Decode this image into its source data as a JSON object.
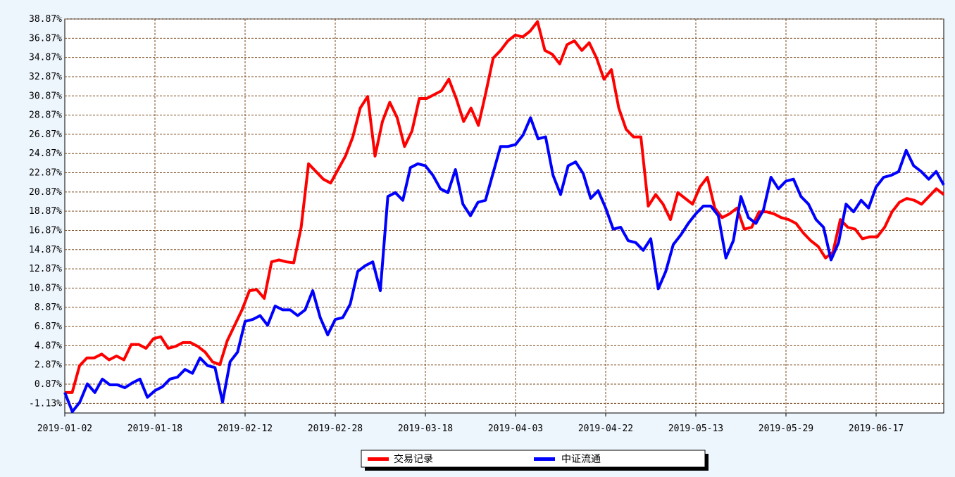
{
  "chart_data": {
    "type": "line",
    "title": "",
    "xlabel": "",
    "ylabel": "",
    "ylim": [
      -2.13,
      38.87
    ],
    "y_ticks": [
      "38.87%",
      "36.87%",
      "34.87%",
      "32.87%",
      "30.87%",
      "28.87%",
      "26.87%",
      "24.87%",
      "22.87%",
      "20.87%",
      "18.87%",
      "16.87%",
      "14.87%",
      "12.87%",
      "10.87%",
      "8.87%",
      "6.87%",
      "4.87%",
      "2.87%",
      "0.87%",
      "-1.13%"
    ],
    "x_ticks": [
      "2019-01-02",
      "2019-01-18",
      "2019-02-12",
      "2019-02-28",
      "2019-03-18",
      "2019-04-03",
      "2019-04-22",
      "2019-05-13",
      "2019-05-29",
      "2019-06-17"
    ],
    "grid": true,
    "legend_position": "bottom-center",
    "series": [
      {
        "name": "交易记录",
        "color": "#ff0000",
        "values": [
          0.0,
          0.0,
          2.8,
          3.6,
          3.6,
          4.0,
          3.4,
          3.8,
          3.4,
          5.0,
          5.0,
          4.6,
          5.6,
          5.8,
          4.6,
          4.8,
          5.2,
          5.2,
          4.8,
          4.2,
          3.2,
          2.9,
          5.4,
          7.0,
          8.6,
          10.6,
          10.7,
          9.8,
          13.6,
          13.8,
          13.6,
          13.5,
          17.2,
          23.8,
          23.0,
          22.2,
          21.8,
          23.2,
          24.6,
          26.6,
          29.6,
          30.8,
          24.6,
          28.2,
          30.2,
          28.6,
          25.6,
          27.2,
          30.6,
          30.6,
          31.0,
          31.4,
          32.6,
          30.6,
          28.2,
          29.6,
          27.8,
          31.2,
          34.8,
          35.6,
          36.6,
          37.2,
          37.0,
          37.6,
          38.6,
          35.6,
          35.2,
          34.2,
          36.2,
          36.6,
          35.6,
          36.4,
          34.8,
          32.6,
          33.6,
          29.6,
          27.4,
          26.6,
          26.6,
          19.4,
          20.6,
          19.6,
          18.0,
          20.8,
          20.2,
          19.6,
          21.4,
          22.4,
          19.2,
          18.2,
          18.6,
          19.2,
          17.0,
          17.2,
          18.8,
          18.8,
          18.6,
          18.2,
          18.0,
          17.6,
          16.6,
          15.8,
          15.2,
          14.0,
          14.6,
          18.0,
          17.2,
          17.0,
          16.0,
          16.2,
          16.2,
          17.2,
          18.8,
          19.8,
          20.2,
          20.0,
          19.6,
          20.4,
          21.2,
          20.6
        ]
      },
      {
        "name": "中证流通",
        "color": "#0000ff",
        "values": [
          0.0,
          -2.0,
          -1.0,
          0.9,
          0.0,
          1.4,
          0.8,
          0.8,
          0.5,
          1.0,
          1.4,
          -0.5,
          0.2,
          0.6,
          1.4,
          1.6,
          2.4,
          2.0,
          3.6,
          2.8,
          2.6,
          -1.0,
          3.2,
          4.2,
          7.4,
          7.6,
          8.0,
          7.0,
          9.0,
          8.6,
          8.6,
          8.0,
          8.6,
          10.6,
          7.8,
          6.0,
          7.6,
          7.8,
          9.2,
          12.6,
          13.2,
          13.6,
          10.6,
          20.4,
          20.8,
          20.0,
          23.4,
          23.8,
          23.6,
          22.6,
          21.2,
          20.8,
          23.2,
          19.6,
          18.4,
          19.8,
          20.0,
          22.8,
          25.6,
          25.6,
          25.8,
          26.8,
          28.6,
          26.4,
          26.6,
          22.6,
          20.6,
          23.6,
          24.0,
          22.8,
          20.2,
          21.0,
          19.2,
          17.0,
          17.2,
          15.8,
          15.6,
          14.8,
          16.0,
          10.8,
          12.6,
          15.4,
          16.4,
          17.6,
          18.6,
          19.4,
          19.4,
          18.4,
          14.0,
          15.8,
          20.4,
          18.2,
          17.6,
          19.0,
          22.4,
          21.2,
          22.0,
          22.2,
          20.4,
          19.6,
          18.0,
          17.2,
          13.8,
          15.6,
          19.6,
          18.8,
          20.0,
          19.2,
          21.4,
          22.4,
          22.6,
          23.0,
          25.2,
          23.6,
          23.0,
          22.2,
          23.0,
          21.6
        ]
      }
    ]
  }
}
